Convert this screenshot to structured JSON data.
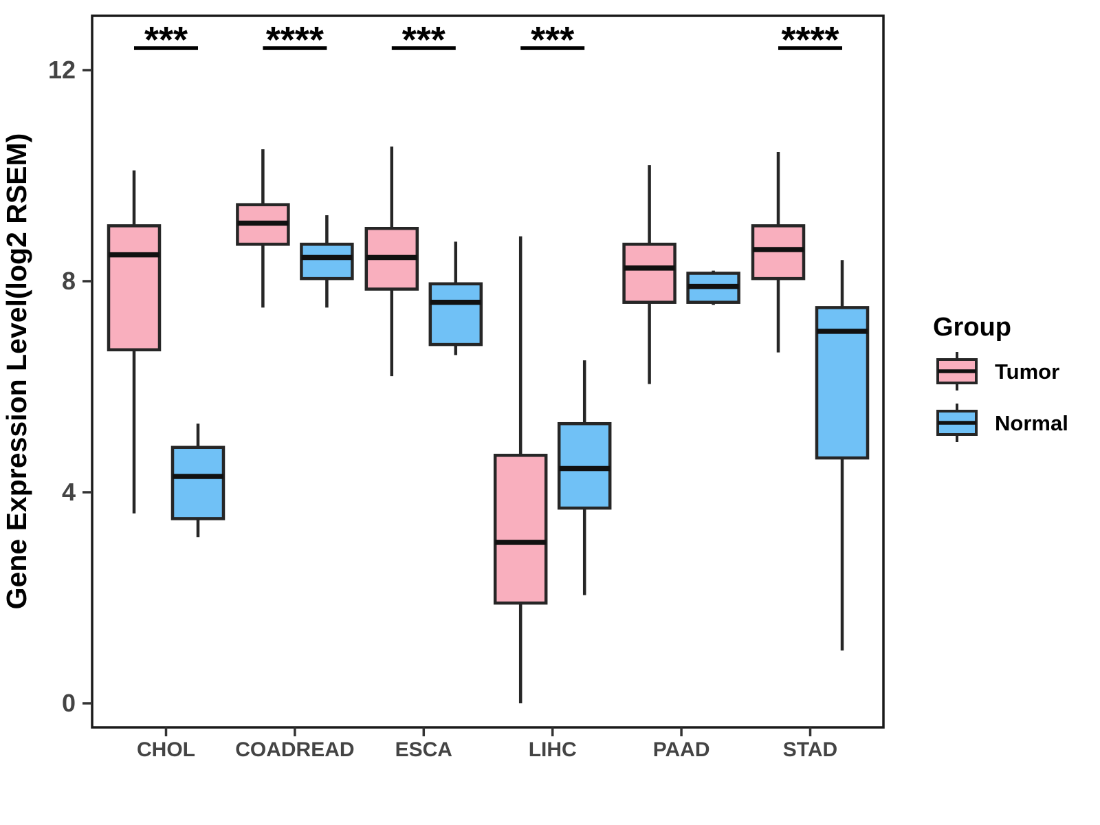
{
  "chart_data": {
    "type": "boxplot",
    "title": "",
    "xlabel": "",
    "ylabel": "Gene Expression Level(log2 RSEM)",
    "ylim": [
      -0.6,
      13.0
    ],
    "yticks": [
      0,
      4,
      8,
      12
    ],
    "grid": false,
    "categories": [
      "CHOL",
      "COADREAD",
      "ESCA",
      "LIHC",
      "PAAD",
      "STAD"
    ],
    "groups": [
      "Tumor",
      "Normal"
    ],
    "colors": {
      "tumor_fill": "#F9AFBE",
      "normal_fill": "#70C1F6",
      "box_stroke": "#262626",
      "median_stroke": "#111111",
      "axis_text": "#444444",
      "panel_border": "#1a1a1a"
    },
    "legend": {
      "title": "Group",
      "position": "right",
      "entries": [
        {
          "label": "Tumor",
          "color": "#F9AFBE"
        },
        {
          "label": "Normal",
          "color": "#70C1F6"
        }
      ]
    },
    "significance": [
      {
        "category": "CHOL",
        "label": "***"
      },
      {
        "category": "COADREAD",
        "label": "****"
      },
      {
        "category": "ESCA",
        "label": "***"
      },
      {
        "category": "LIHC",
        "label": "***"
      },
      {
        "category": "STAD",
        "label": "****"
      }
    ],
    "series": [
      {
        "name": "Tumor",
        "color": "#F9AFBE",
        "boxes": [
          {
            "category": "CHOL",
            "whisker_low": 3.6,
            "q1": 6.7,
            "median": 8.5,
            "q3": 9.05,
            "whisker_high": 10.1
          },
          {
            "category": "COADREAD",
            "whisker_low": 7.5,
            "q1": 8.7,
            "median": 9.1,
            "q3": 9.45,
            "whisker_high": 10.5
          },
          {
            "category": "ESCA",
            "whisker_low": 6.2,
            "q1": 7.85,
            "median": 8.45,
            "q3": 9.0,
            "whisker_high": 10.55
          },
          {
            "category": "LIHC",
            "whisker_low": 0.0,
            "q1": 1.9,
            "median": 3.05,
            "q3": 4.7,
            "whisker_high": 8.85
          },
          {
            "category": "PAAD",
            "whisker_low": 6.05,
            "q1": 7.6,
            "median": 8.25,
            "q3": 8.7,
            "whisker_high": 10.2
          },
          {
            "category": "STAD",
            "whisker_low": 6.65,
            "q1": 8.05,
            "median": 8.6,
            "q3": 9.05,
            "whisker_high": 10.45
          }
        ]
      },
      {
        "name": "Normal",
        "color": "#70C1F6",
        "boxes": [
          {
            "category": "CHOL",
            "whisker_low": 3.15,
            "q1": 3.5,
            "median": 4.3,
            "q3": 4.85,
            "whisker_high": 5.3
          },
          {
            "category": "COADREAD",
            "whisker_low": 7.5,
            "q1": 8.05,
            "median": 8.45,
            "q3": 8.7,
            "whisker_high": 9.25
          },
          {
            "category": "ESCA",
            "whisker_low": 6.6,
            "q1": 6.8,
            "median": 7.6,
            "q3": 7.95,
            "whisker_high": 8.75
          },
          {
            "category": "LIHC",
            "whisker_low": 2.05,
            "q1": 3.7,
            "median": 4.45,
            "q3": 5.3,
            "whisker_high": 6.5
          },
          {
            "category": "PAAD",
            "whisker_low": 7.55,
            "q1": 7.6,
            "median": 7.9,
            "q3": 8.15,
            "whisker_high": 8.2
          },
          {
            "category": "STAD",
            "whisker_low": 1.0,
            "q1": 4.65,
            "median": 7.05,
            "q3": 7.5,
            "whisker_high": 8.4
          }
        ]
      }
    ]
  }
}
